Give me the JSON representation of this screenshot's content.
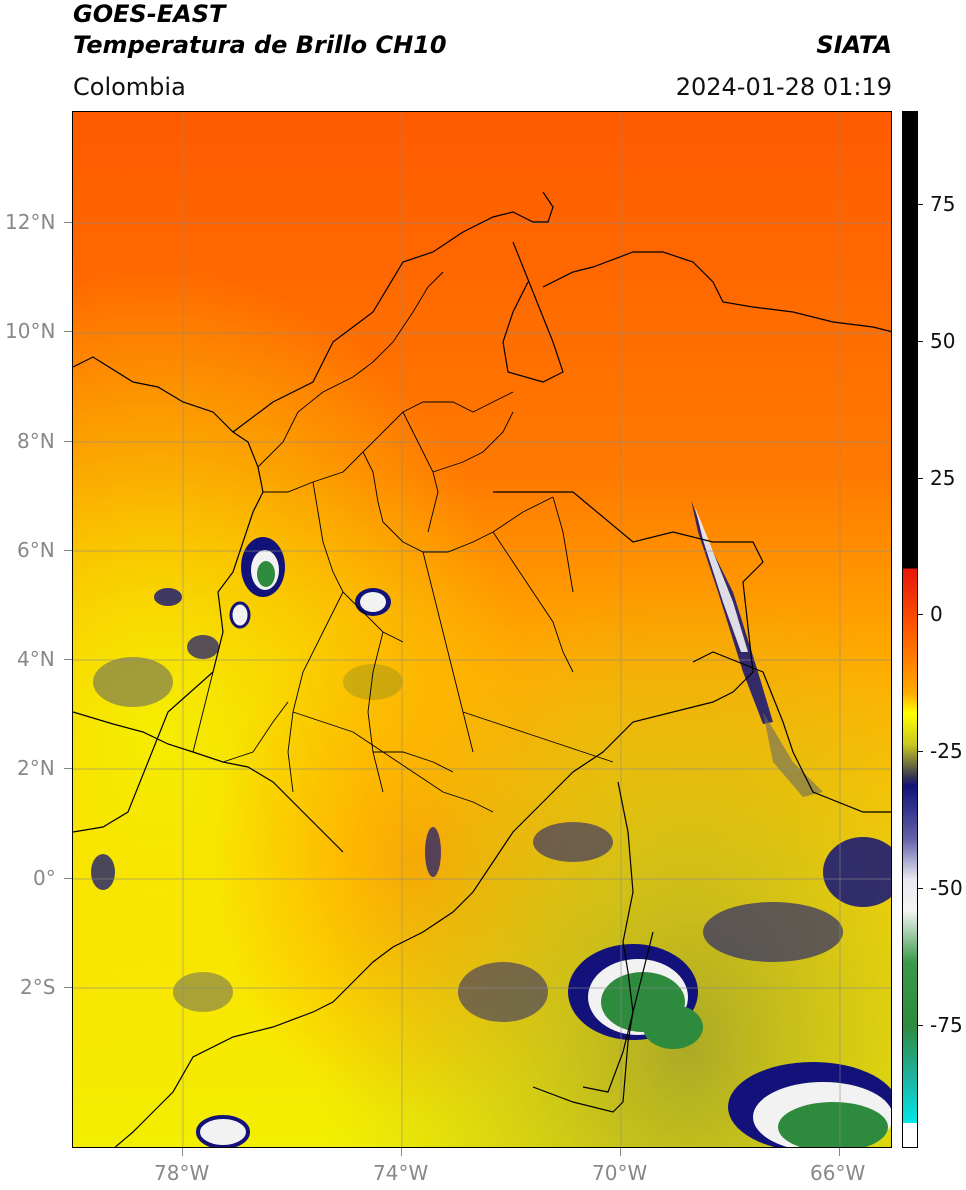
{
  "header": {
    "satellite": "GOES-EAST",
    "product": "Temperatura de Brillo CH10",
    "region": "Colombia",
    "agency": "SIATA",
    "datetime": "2024-01-28 01:19"
  },
  "map": {
    "lat_labels": [
      "12°N",
      "10°N",
      "8°N",
      "6°N",
      "4°N",
      "2°N",
      "0°",
      "2°S"
    ],
    "lon_labels": [
      "78°W",
      "74°W",
      "70°W",
      "66°W"
    ],
    "extent": {
      "lon_min": -80,
      "lon_max": -65,
      "lat_min": -5,
      "lat_max": 14
    },
    "gridlines": true
  },
  "colorbar": {
    "tick_labels": [
      "75",
      "50",
      "25",
      "0",
      "-25",
      "-50",
      "-75"
    ],
    "range": [
      -95,
      95
    ],
    "colors": {
      "black": "#000000",
      "red": "#e8140a",
      "orange": "#ff7f00",
      "yellow": "#ffff00",
      "olive": "#a8a828",
      "navy": "#12127a",
      "white": "#f4f4f4",
      "green": "#2e8b3e",
      "teal": "#20b2a0",
      "cyan": "#00e8e8"
    }
  }
}
